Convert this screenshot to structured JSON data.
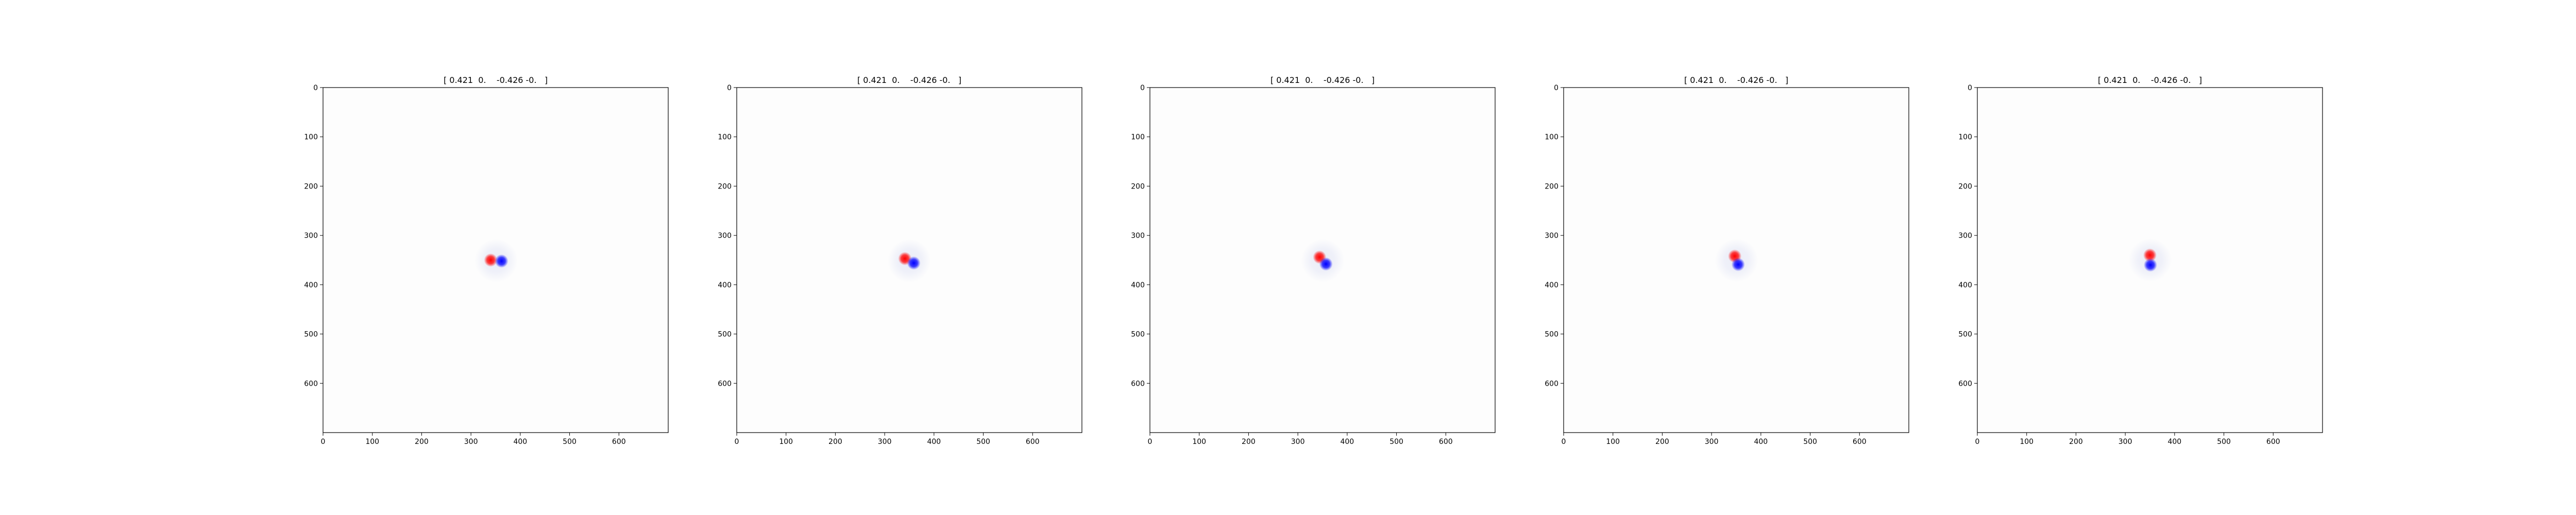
{
  "chart_data": [
    {
      "type": "heatmap",
      "title": "[ 0.421  0.    -0.426 -0.   ]",
      "xlabel": "",
      "ylabel": "",
      "xlim": [
        0,
        700
      ],
      "ylim": [
        700,
        0
      ],
      "xticks": [
        "0",
        "100",
        "200",
        "300",
        "400",
        "500",
        "600"
      ],
      "yticks": [
        "0",
        "100",
        "200",
        "300",
        "400",
        "500",
        "600"
      ],
      "colormap": "bwr",
      "blobs": [
        {
          "x": 340,
          "y": 350,
          "sign": "positive",
          "color": "#ff0000"
        },
        {
          "x": 362,
          "y": 352,
          "sign": "negative",
          "color": "#0000ff"
        }
      ]
    },
    {
      "type": "heatmap",
      "title": "[ 0.421  0.    -0.426 -0.   ]",
      "xlabel": "",
      "ylabel": "",
      "xlim": [
        0,
        700
      ],
      "ylim": [
        700,
        0
      ],
      "xticks": [
        "0",
        "100",
        "200",
        "300",
        "400",
        "500",
        "600"
      ],
      "yticks": [
        "0",
        "100",
        "200",
        "300",
        "400",
        "500",
        "600"
      ],
      "colormap": "bwr",
      "blobs": [
        {
          "x": 341,
          "y": 347,
          "sign": "positive",
          "color": "#ff0000"
        },
        {
          "x": 359,
          "y": 356,
          "sign": "negative",
          "color": "#0000ff"
        }
      ]
    },
    {
      "type": "heatmap",
      "title": "[ 0.421  0.    -0.426 -0.   ]",
      "xlabel": "",
      "ylabel": "",
      "xlim": [
        0,
        700
      ],
      "ylim": [
        700,
        0
      ],
      "xticks": [
        "0",
        "100",
        "200",
        "300",
        "400",
        "500",
        "600"
      ],
      "yticks": [
        "0",
        "100",
        "200",
        "300",
        "400",
        "500",
        "600"
      ],
      "colormap": "bwr",
      "blobs": [
        {
          "x": 344,
          "y": 344,
          "sign": "positive",
          "color": "#ff0000"
        },
        {
          "x": 357,
          "y": 358,
          "sign": "negative",
          "color": "#0000ff"
        }
      ]
    },
    {
      "type": "heatmap",
      "title": "[ 0.421  0.    -0.426 -0.   ]",
      "xlabel": "",
      "ylabel": "",
      "xlim": [
        0,
        700
      ],
      "ylim": [
        700,
        0
      ],
      "xticks": [
        "0",
        "100",
        "200",
        "300",
        "400",
        "500",
        "600"
      ],
      "yticks": [
        "0",
        "100",
        "200",
        "300",
        "400",
        "500",
        "600"
      ],
      "colormap": "bwr",
      "blobs": [
        {
          "x": 347,
          "y": 342,
          "sign": "positive",
          "color": "#ff0000"
        },
        {
          "x": 354,
          "y": 359,
          "sign": "negative",
          "color": "#0000ff"
        }
      ]
    },
    {
      "type": "heatmap",
      "title": "[ 0.421  0.    -0.426 -0.   ]",
      "xlabel": "",
      "ylabel": "",
      "xlim": [
        0,
        700
      ],
      "ylim": [
        700,
        0
      ],
      "xticks": [
        "0",
        "100",
        "200",
        "300",
        "400",
        "500",
        "600"
      ],
      "yticks": [
        "0",
        "100",
        "200",
        "300",
        "400",
        "500",
        "600"
      ],
      "colormap": "bwr",
      "blobs": [
        {
          "x": 350,
          "y": 340,
          "sign": "positive",
          "color": "#ff0000"
        },
        {
          "x": 351,
          "y": 360,
          "sign": "negative",
          "color": "#0000ff"
        }
      ]
    }
  ]
}
